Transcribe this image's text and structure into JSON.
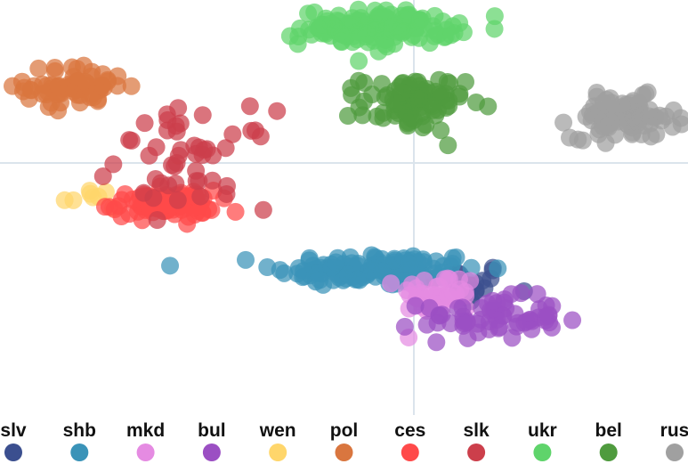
{
  "chart_data": {
    "type": "scatter",
    "title": "",
    "xlabel": "",
    "ylabel": "",
    "axes": {
      "x_zero_line": true,
      "y_zero_line": true,
      "grid": false,
      "tick_labels": false
    },
    "xlim": [
      -1.0,
      0.6
    ],
    "ylim": [
      -0.8,
      0.4
    ],
    "legend": {
      "placement": "bottom"
    },
    "series": [
      {
        "name": "slv",
        "color": "#3b4f8f",
        "center": [
          0.08,
          -0.42
        ],
        "spread": [
          0.05,
          0.03
        ],
        "count": 25
      },
      {
        "name": "shb",
        "color": "#3a93b8",
        "center": [
          -0.12,
          -0.38
        ],
        "spread": [
          0.12,
          0.025
        ],
        "count": 130
      },
      {
        "name": "mkd",
        "color": "#e58be2",
        "center": [
          0.02,
          -0.45
        ],
        "spread": [
          0.045,
          0.03
        ],
        "count": 40
      },
      {
        "name": "bul",
        "color": "#9b4fc3",
        "center": [
          0.14,
          -0.52
        ],
        "spread": [
          0.08,
          0.03
        ],
        "count": 65
      },
      {
        "name": "wen",
        "color": "#ffd66b",
        "center": [
          -0.78,
          -0.17
        ],
        "spread": [
          0.04,
          0.03
        ],
        "count": 8
      },
      {
        "name": "pol",
        "color": "#d9763f",
        "center": [
          -0.82,
          0.15
        ],
        "spread": [
          0.06,
          0.03
        ],
        "count": 70
      },
      {
        "name": "ces",
        "color": "#ff4a4a",
        "center": [
          -0.62,
          -0.19
        ],
        "spread": [
          0.06,
          0.02
        ],
        "count": 90
      },
      {
        "name": "slk",
        "color": "#cc3f4b",
        "center": [
          -0.55,
          -0.06
        ],
        "spread": [
          0.09,
          0.07
        ],
        "count": 50
      },
      {
        "name": "ukr",
        "color": "#5fd46b",
        "center": [
          -0.12,
          0.32
        ],
        "spread": [
          0.09,
          0.025
        ],
        "count": 150
      },
      {
        "name": "bel",
        "color": "#4f9b3e",
        "center": [
          -0.04,
          0.1
        ],
        "spread": [
          0.06,
          0.04
        ],
        "count": 90
      },
      {
        "name": "rus",
        "color": "#a0a0a0",
        "center": [
          0.45,
          0.06
        ],
        "spread": [
          0.06,
          0.03
        ],
        "count": 90
      }
    ]
  }
}
